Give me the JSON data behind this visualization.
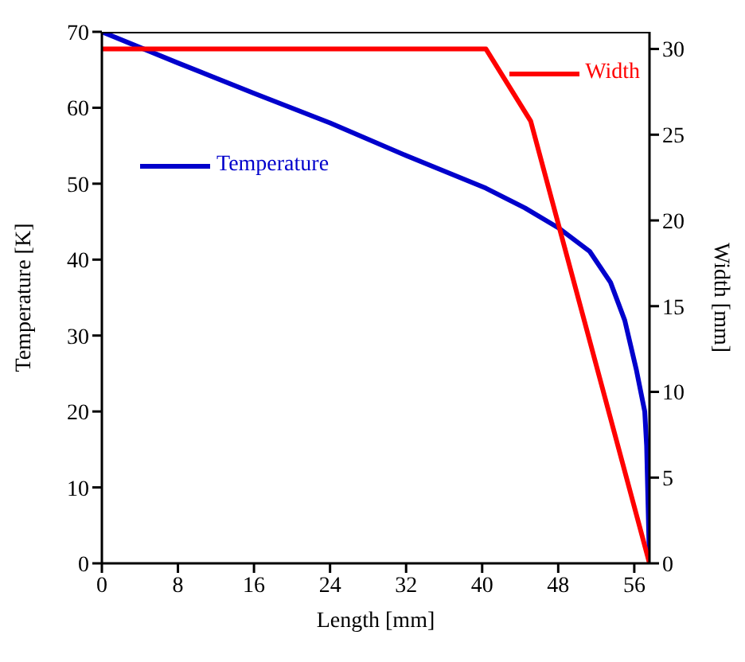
{
  "chart_data": {
    "type": "line",
    "xlabel": "Length [mm]",
    "ylabel": "Temperature [K]",
    "y2label": "Width [mm]",
    "xlim": [
      0,
      57.6
    ],
    "xticks": [
      0,
      8,
      16,
      24,
      32,
      40,
      48,
      56
    ],
    "ylim": [
      0,
      70
    ],
    "yticks": [
      0,
      10,
      20,
      30,
      40,
      50,
      60,
      70
    ],
    "y2lim": [
      0,
      31
    ],
    "y2ticks": [
      0,
      5,
      10,
      15,
      20,
      25,
      30
    ],
    "series": [
      {
        "name": "Temperature",
        "color": "#0000cc",
        "x": [
          0,
          8,
          16,
          24,
          32,
          40.4,
          44.5,
          48,
          51.3,
          53.5,
          55,
          56.2,
          57.1,
          57.3,
          57.6
        ],
        "values": [
          70,
          65.9,
          61.9,
          58,
          53.7,
          49.4,
          46.8,
          44.2,
          41.1,
          37,
          32,
          25.6,
          20,
          15.5,
          0
        ]
      },
      {
        "name": "Width",
        "color": "#ff0000",
        "axis": "y2",
        "x": [
          0,
          40.4,
          45.1,
          57.6
        ],
        "values": [
          30,
          30,
          25.8,
          0
        ]
      }
    ],
    "legend": "top",
    "grid": false,
    "marker": "none",
    "line_style": "solid"
  }
}
